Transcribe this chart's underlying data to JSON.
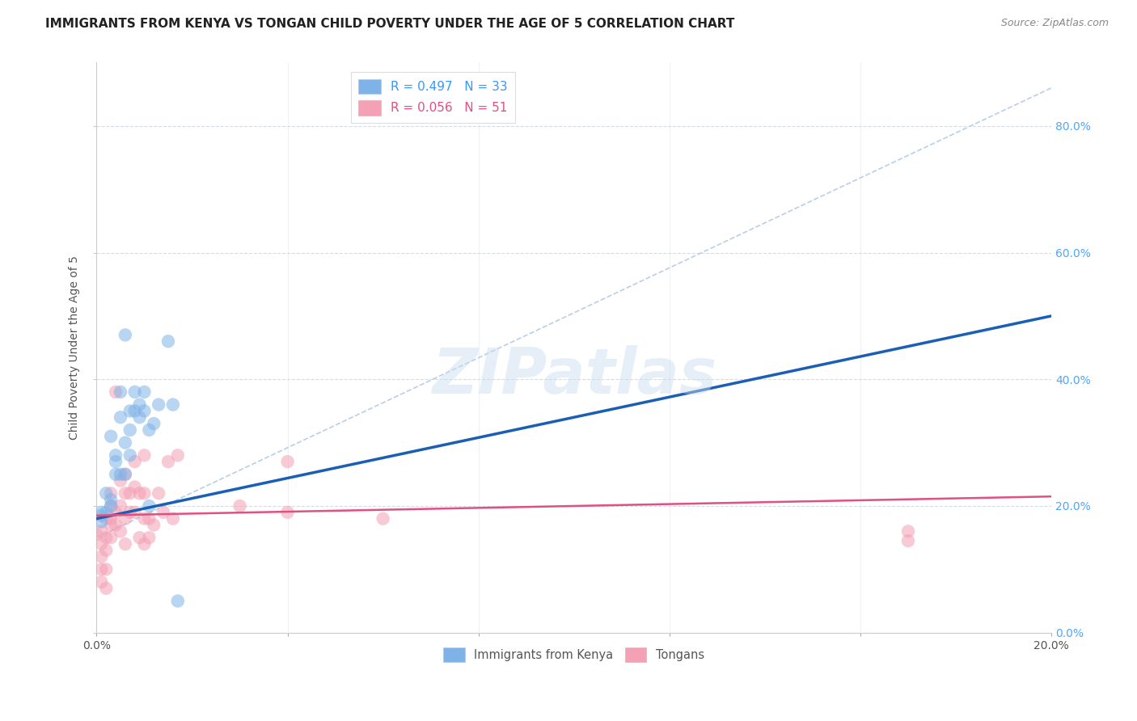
{
  "title": "IMMIGRANTS FROM KENYA VS TONGAN CHILD POVERTY UNDER THE AGE OF 5 CORRELATION CHART",
  "source": "Source: ZipAtlas.com",
  "ylabel": "Child Poverty Under the Age of 5",
  "xlim": [
    0.0,
    0.2
  ],
  "ylim": [
    0.0,
    0.9
  ],
  "xticks": [
    0.0,
    0.04,
    0.08,
    0.12,
    0.16,
    0.2
  ],
  "yticks": [
    0.0,
    0.2,
    0.4,
    0.6,
    0.8
  ],
  "xtick_labels_bottom": [
    "0.0%",
    "",
    "",
    "",
    "",
    "20.0%"
  ],
  "ytick_labels_right": [
    "0.0%",
    "20.0%",
    "40.0%",
    "60.0%",
    "80.0%"
  ],
  "kenya_color": "#7fb3e8",
  "tonga_color": "#f4a0b5",
  "kenya_line_color": "#1a5fb4",
  "tonga_line_color": "#e05080",
  "ref_line_color": "#b8cfe8",
  "kenya_scatter": [
    [
      0.001,
      0.185
    ],
    [
      0.001,
      0.175
    ],
    [
      0.002,
      0.22
    ],
    [
      0.002,
      0.19
    ],
    [
      0.003,
      0.21
    ],
    [
      0.003,
      0.31
    ],
    [
      0.003,
      0.2
    ],
    [
      0.004,
      0.27
    ],
    [
      0.004,
      0.25
    ],
    [
      0.004,
      0.28
    ],
    [
      0.005,
      0.34
    ],
    [
      0.005,
      0.38
    ],
    [
      0.005,
      0.25
    ],
    [
      0.006,
      0.25
    ],
    [
      0.006,
      0.47
    ],
    [
      0.006,
      0.3
    ],
    [
      0.007,
      0.35
    ],
    [
      0.007,
      0.32
    ],
    [
      0.007,
      0.28
    ],
    [
      0.008,
      0.35
    ],
    [
      0.008,
      0.38
    ],
    [
      0.009,
      0.36
    ],
    [
      0.009,
      0.34
    ],
    [
      0.01,
      0.35
    ],
    [
      0.01,
      0.38
    ],
    [
      0.011,
      0.32
    ],
    [
      0.011,
      0.2
    ],
    [
      0.012,
      0.33
    ],
    [
      0.013,
      0.36
    ],
    [
      0.015,
      0.46
    ],
    [
      0.016,
      0.36
    ],
    [
      0.017,
      0.05
    ],
    [
      0.001,
      0.19
    ]
  ],
  "tonga_scatter": [
    [
      0.0,
      0.155
    ],
    [
      0.001,
      0.12
    ],
    [
      0.001,
      0.1
    ],
    [
      0.001,
      0.08
    ],
    [
      0.001,
      0.14
    ],
    [
      0.001,
      0.16
    ],
    [
      0.002,
      0.18
    ],
    [
      0.002,
      0.15
    ],
    [
      0.002,
      0.13
    ],
    [
      0.002,
      0.1
    ],
    [
      0.002,
      0.07
    ],
    [
      0.003,
      0.2
    ],
    [
      0.003,
      0.17
    ],
    [
      0.003,
      0.15
    ],
    [
      0.003,
      0.18
    ],
    [
      0.003,
      0.22
    ],
    [
      0.004,
      0.17
    ],
    [
      0.004,
      0.19
    ],
    [
      0.004,
      0.38
    ],
    [
      0.005,
      0.24
    ],
    [
      0.005,
      0.2
    ],
    [
      0.005,
      0.16
    ],
    [
      0.006,
      0.25
    ],
    [
      0.006,
      0.22
    ],
    [
      0.006,
      0.18
    ],
    [
      0.006,
      0.14
    ],
    [
      0.007,
      0.22
    ],
    [
      0.007,
      0.19
    ],
    [
      0.008,
      0.23
    ],
    [
      0.008,
      0.27
    ],
    [
      0.008,
      0.19
    ],
    [
      0.009,
      0.22
    ],
    [
      0.009,
      0.15
    ],
    [
      0.01,
      0.22
    ],
    [
      0.01,
      0.28
    ],
    [
      0.01,
      0.18
    ],
    [
      0.01,
      0.14
    ],
    [
      0.011,
      0.15
    ],
    [
      0.011,
      0.18
    ],
    [
      0.012,
      0.17
    ],
    [
      0.013,
      0.22
    ],
    [
      0.014,
      0.19
    ],
    [
      0.015,
      0.27
    ],
    [
      0.016,
      0.18
    ],
    [
      0.017,
      0.28
    ],
    [
      0.03,
      0.2
    ],
    [
      0.04,
      0.19
    ],
    [
      0.04,
      0.27
    ],
    [
      0.06,
      0.18
    ],
    [
      0.17,
      0.16
    ],
    [
      0.17,
      0.145
    ]
  ],
  "kenya_R": 0.497,
  "kenya_N": 33,
  "tonga_R": 0.056,
  "tonga_N": 51,
  "kenya_line_x": [
    0.0,
    0.2
  ],
  "kenya_line_y": [
    0.18,
    0.5
  ],
  "tonga_line_x": [
    0.0,
    0.2
  ],
  "tonga_line_y": [
    0.185,
    0.215
  ],
  "ref_line_x": [
    0.0,
    0.2
  ],
  "ref_line_y": [
    0.15,
    0.86
  ],
  "watermark": "ZIPatlas",
  "background_color": "#ffffff",
  "grid_color": "#d0d8e0",
  "title_fontsize": 11,
  "axis_label_fontsize": 10,
  "tick_fontsize": 10,
  "legend_fontsize": 11,
  "source_fontsize": 9
}
